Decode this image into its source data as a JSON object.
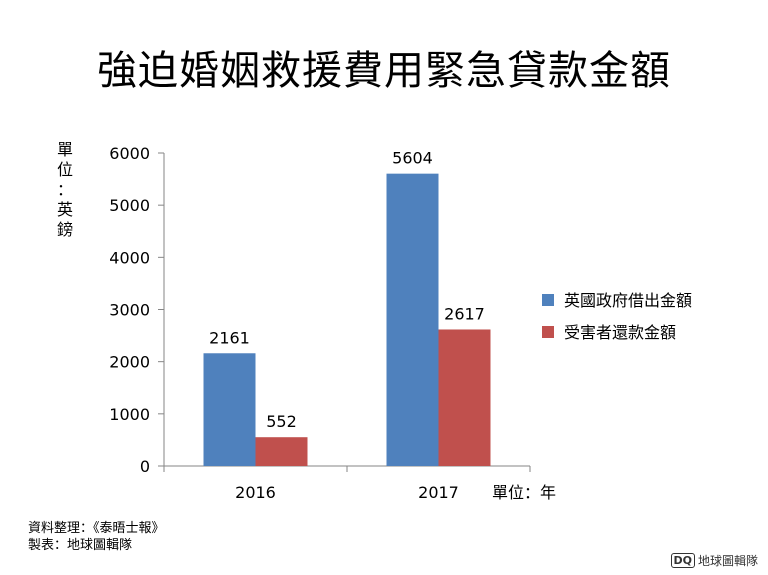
{
  "title": "強迫婚姻救援費用緊急貸款金額",
  "source_lines": [
    "資料整理：《泰晤士報》",
    "製表：地球圖輯隊"
  ],
  "logo": {
    "mark": "DQ",
    "text": "地球圖輯隊"
  },
  "chart_data": {
    "type": "bar",
    "title": "強迫婚姻救援費用緊急貸款金額",
    "ylabel": "單位：英鎊",
    "xlabel": "單位：年",
    "categories": [
      "2016",
      "2017"
    ],
    "series": [
      {
        "name": "英國政府借出金額",
        "values": [
          2161,
          5604
        ],
        "color": "#4f81bd"
      },
      {
        "name": "受害者還款金額",
        "values": [
          552,
          2617
        ],
        "color": "#c0504d"
      }
    ],
    "ylim": [
      0,
      6000
    ],
    "yticks": [
      0,
      1000,
      2000,
      3000,
      4000,
      5000,
      6000
    ],
    "grid": false,
    "legend_position": "right"
  }
}
